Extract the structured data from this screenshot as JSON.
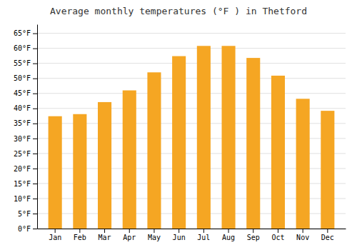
{
  "chart_data": {
    "type": "bar",
    "title": "Average monthly temperatures (°F ) in Thetford",
    "categories": [
      "Jan",
      "Feb",
      "Mar",
      "Apr",
      "May",
      "Jun",
      "Jul",
      "Aug",
      "Sep",
      "Oct",
      "Nov",
      "Dec"
    ],
    "values": [
      37.4,
      38.1,
      42.1,
      46.0,
      52.0,
      57.4,
      60.8,
      60.8,
      56.8,
      50.9,
      43.2,
      39.2
    ],
    "color": "#F5A623",
    "ylim": [
      0,
      68
    ],
    "yticks": [
      {
        "value": 0,
        "label": "0°F"
      },
      {
        "value": 5,
        "label": "5°F"
      },
      {
        "value": 10,
        "label": "10°F"
      },
      {
        "value": 15,
        "label": "15°F"
      },
      {
        "value": 20,
        "label": "20°F"
      },
      {
        "value": 25,
        "label": "25°F"
      },
      {
        "value": 30,
        "label": "30°F"
      },
      {
        "value": 35,
        "label": "35°F"
      },
      {
        "value": 40,
        "label": "40°F"
      },
      {
        "value": 45,
        "label": "45°F"
      },
      {
        "value": 50,
        "label": "50°F"
      },
      {
        "value": 55,
        "label": "55°F"
      },
      {
        "value": 60,
        "label": "60°F"
      },
      {
        "value": 65,
        "label": "65°F"
      }
    ],
    "grid": true
  }
}
